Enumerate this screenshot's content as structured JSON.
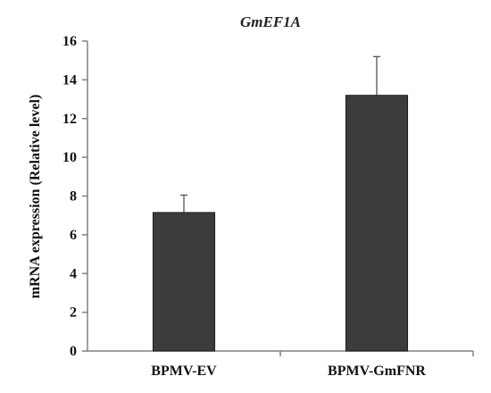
{
  "chart_data": {
    "type": "bar",
    "title": "GmEF1A",
    "ylabel": "mRNA expression (Relative level)",
    "xlabel": "",
    "categories": [
      "BPMV-EV",
      "BPMV-GmFNR"
    ],
    "values": [
      7.15,
      13.2
    ],
    "error": [
      0.9,
      2.0
    ],
    "ylim": [
      0,
      16
    ],
    "yticks": [
      0,
      2,
      4,
      6,
      8,
      10,
      12,
      14,
      16
    ],
    "grid": false,
    "legend": "none",
    "bar_color": "#3c3c3c",
    "axis_color": "#808080"
  }
}
